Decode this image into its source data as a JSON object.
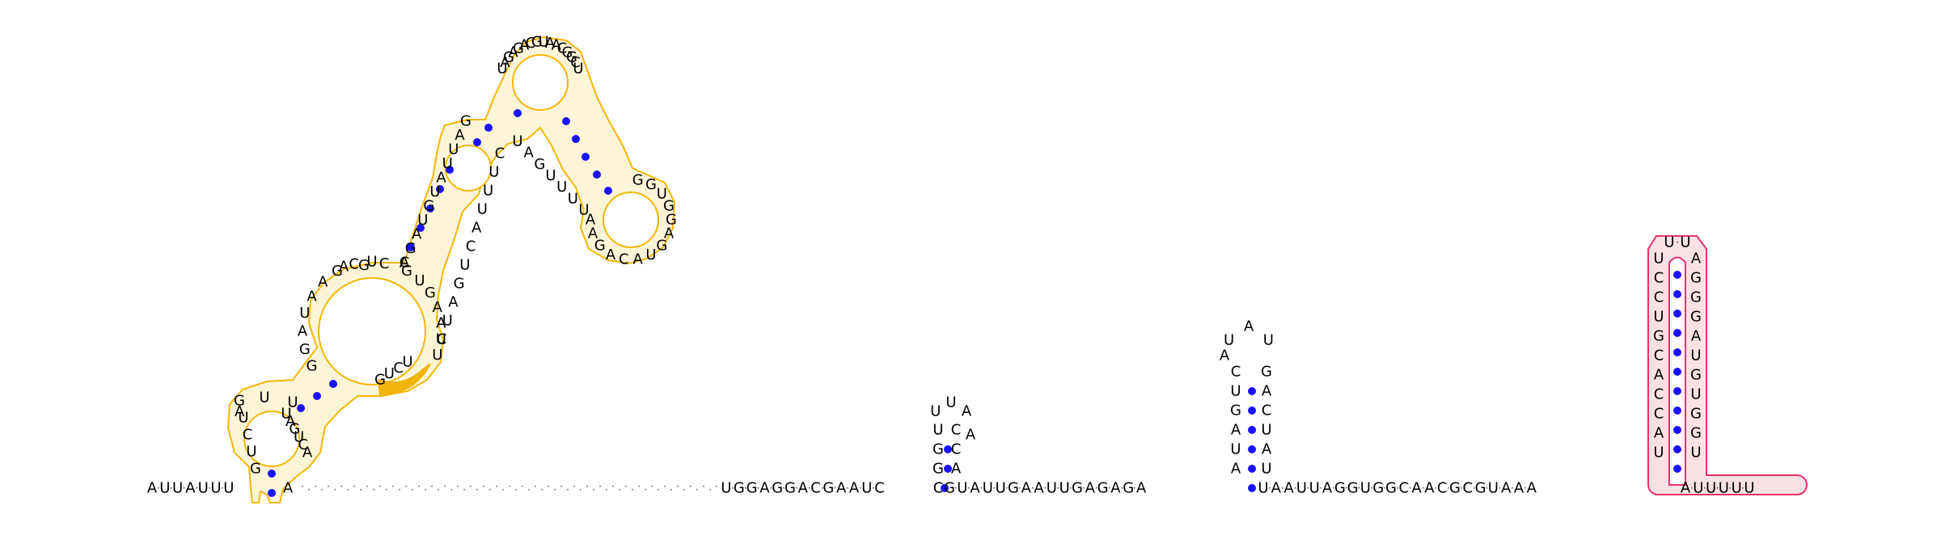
{
  "colors": {
    "base_pair_dot": "#1a12ff",
    "orange_outline": "#f2b705",
    "orange_highlight": "#f0b40a",
    "orange_fill": "#fdf5d8",
    "pink_outline": "#e3336b",
    "pink_fill": "#f9e1e6"
  },
  "icons": [
    "base-pair-dot-icon"
  ],
  "backbone": {
    "segment_left": "A·U·U·A·U·U·U",
    "segment_a": "U·G·G·A·G·G·A·C·G·A·A·U·C",
    "segment_b": "G·U·A·U·U·G·A·A·U·U·G·A·G·A·G·A",
    "segment_c": "U·A·A·U·U·A·G·G·U·G·G·C·A·A·C·G·C·G·U·A·A·A",
    "segment_d": "A·U·U·U·U·U"
  },
  "stem_small": {
    "left_bases": [
      "G",
      "G",
      "U"
    ],
    "right_bases": [
      "A",
      "C",
      "C"
    ],
    "loop": "U·U·A"
  },
  "stem_mid": {
    "left_bases": [
      "A",
      "U",
      "A",
      "G",
      "U",
      "C"
    ],
    "right_bases": [
      "U",
      "A",
      "U",
      "C",
      "A",
      "G"
    ],
    "loop_left": "A",
    "loop_top": "U·A·U"
  },
  "stem_pink": {
    "left_bases": [
      "U",
      "C",
      "C",
      "U",
      "G",
      "C",
      "A",
      "C",
      "C",
      "A",
      "U"
    ],
    "right_bases": [
      "A",
      "G",
      "G",
      "G",
      "A",
      "U",
      "G",
      "U",
      "G",
      "G",
      "U"
    ],
    "loop": "U·U"
  },
  "domain_orange": {
    "bases": [
      {
        "b": "G",
        "pos": "hairpin-left"
      },
      {
        "b": "U",
        "pos": "hairpin-left"
      },
      {
        "b": "C",
        "pos": "hairpin-left"
      },
      {
        "b": "U",
        "pos": "hairpin-left"
      },
      {
        "b": "G",
        "pos": "hairpin-left"
      },
      {
        "b": "A",
        "pos": "hairpin-left"
      },
      {
        "b": "U",
        "pos": "hairpin-left"
      },
      {
        "b": "U",
        "pos": "hairpin-left"
      },
      {
        "b": "A",
        "pos": "hairpin-right"
      },
      {
        "b": "C",
        "pos": "hairpin-right"
      },
      {
        "b": "U",
        "pos": "hairpin-right"
      },
      {
        "b": "G",
        "pos": "hairpin-right"
      },
      {
        "b": "A",
        "pos": "hairpin-right"
      },
      {
        "b": "U",
        "pos": "hairpin-right"
      },
      {
        "b": "G",
        "pos": "ml"
      },
      {
        "b": "G",
        "pos": "ml"
      },
      {
        "b": "A",
        "pos": "ml"
      },
      {
        "b": "U",
        "pos": "ml"
      },
      {
        "b": "A",
        "pos": "ml"
      },
      {
        "b": "A",
        "pos": "ml"
      },
      {
        "b": "G",
        "pos": "ml"
      },
      {
        "b": "C",
        "pos": "ml"
      },
      {
        "b": "U",
        "pos": "ml"
      },
      {
        "b": "A",
        "pos": "ml"
      },
      {
        "b": "G",
        "pos": "ml"
      },
      {
        "b": "C",
        "pos": "ml"
      },
      {
        "b": "C",
        "pos": "ml"
      },
      {
        "b": "G",
        "pos": "ml"
      },
      {
        "b": "U",
        "pos": "ml"
      },
      {
        "b": "C",
        "pos": "ml"
      },
      {
        "b": "U",
        "pos": "ml"
      },
      {
        "b": "U",
        "pos": "ml"
      },
      {
        "b": "U",
        "pos": "ml"
      },
      {
        "b": "A",
        "pos": "ml"
      },
      {
        "b": "A",
        "pos": "ml"
      },
      {
        "b": "G",
        "pos": "ml"
      },
      {
        "b": "U",
        "pos": "ml"
      },
      {
        "b": "G",
        "pos": "stem"
      },
      {
        "b": "A",
        "pos": "stem"
      },
      {
        "b": "G",
        "pos": "stem"
      },
      {
        "b": "A",
        "pos": "stem"
      },
      {
        "b": "U",
        "pos": "stem"
      },
      {
        "b": "G",
        "pos": "stem"
      },
      {
        "b": "U",
        "pos": "stem"
      },
      {
        "b": "A",
        "pos": "stem"
      },
      {
        "b": "U",
        "pos": "stem"
      },
      {
        "b": "U",
        "pos": "stem"
      },
      {
        "b": "A",
        "pos": "stem"
      },
      {
        "b": "G",
        "pos": "stem"
      },
      {
        "b": "C",
        "pos": "stem"
      },
      {
        "b": "U",
        "pos": "stem"
      },
      {
        "b": "A",
        "pos": "stem"
      },
      {
        "b": "G",
        "pos": "stem"
      },
      {
        "b": "U",
        "pos": "stem"
      },
      {
        "b": "C",
        "pos": "stem"
      },
      {
        "b": "A",
        "pos": "stem"
      },
      {
        "b": "U",
        "pos": "stem"
      },
      {
        "b": "U",
        "pos": "stem"
      },
      {
        "b": "U",
        "pos": "stem"
      },
      {
        "b": "C",
        "pos": "top"
      },
      {
        "b": "U",
        "pos": "top"
      },
      {
        "b": "A",
        "pos": "top"
      },
      {
        "b": "G",
        "pos": "top"
      },
      {
        "b": "A",
        "pos": "top"
      },
      {
        "b": "G",
        "pos": "top"
      },
      {
        "b": "A",
        "pos": "top"
      },
      {
        "b": "C",
        "pos": "top"
      },
      {
        "b": "G",
        "pos": "top"
      },
      {
        "b": "U",
        "pos": "top"
      },
      {
        "b": "A",
        "pos": "top"
      },
      {
        "b": "A",
        "pos": "top"
      },
      {
        "b": "C",
        "pos": "top"
      },
      {
        "b": "G",
        "pos": "top"
      },
      {
        "b": "G",
        "pos": "top"
      },
      {
        "b": "C",
        "pos": "top"
      },
      {
        "b": "U",
        "pos": "top"
      },
      {
        "b": "G",
        "pos": "top"
      },
      {
        "b": "G",
        "pos": "top"
      },
      {
        "b": "U",
        "pos": "top"
      },
      {
        "b": "G",
        "pos": "top"
      },
      {
        "b": "G",
        "pos": "top"
      },
      {
        "b": "A",
        "pos": "top"
      },
      {
        "b": "G",
        "pos": "top"
      },
      {
        "b": "U",
        "pos": "top"
      },
      {
        "b": "A",
        "pos": "top"
      },
      {
        "b": "C",
        "pos": "top"
      },
      {
        "b": "A",
        "pos": "top"
      },
      {
        "b": "G",
        "pos": "top"
      },
      {
        "b": "A",
        "pos": "top"
      },
      {
        "b": "A",
        "pos": "top"
      },
      {
        "b": "U",
        "pos": "top"
      },
      {
        "b": "A",
        "pos": "top"
      },
      {
        "b": "G",
        "pos": "top"
      },
      {
        "b": "U",
        "pos": "top"
      },
      {
        "b": "U",
        "pos": "top"
      },
      {
        "b": "U",
        "pos": "top"
      },
      {
        "b": "U",
        "pos": "top"
      }
    ]
  }
}
